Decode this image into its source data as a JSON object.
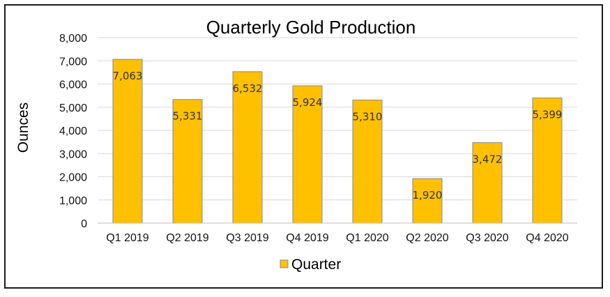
{
  "chart_data": {
    "type": "bar",
    "title": "Quarterly Gold Production",
    "ylabel": "Ounces",
    "xlabel": "",
    "categories": [
      "Q1 2019",
      "Q2 2019",
      "Q3 2019",
      "Q4 2019",
      "Q1 2020",
      "Q2 2020",
      "Q3 2020",
      "Q4 2020"
    ],
    "series": [
      {
        "name": "Quarter",
        "values": [
          7063,
          5331,
          6532,
          5924,
          5310,
          1920,
          3472,
          5399
        ],
        "color": "#ffc000"
      }
    ],
    "data_labels": [
      "7,063",
      "5,331",
      "6,532",
      "5,924",
      "5,310",
      "1,920",
      "3,472",
      "5,399"
    ],
    "ylim": [
      0,
      8000
    ],
    "yticks": [
      "0",
      "1,000",
      "2,000",
      "3,000",
      "4,000",
      "5,000",
      "6,000",
      "7,000",
      "8,000"
    ],
    "grid": true,
    "legend": "bottom-center",
    "colors": {
      "bar": "#ffc000",
      "bar_border": "#8a8a8a",
      "grid": "#d9d9d9"
    }
  }
}
